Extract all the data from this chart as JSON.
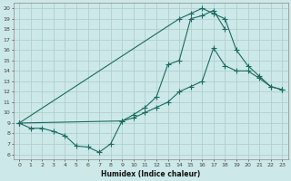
{
  "bg_color": "#cde8e8",
  "grid_color": "#b0d0d0",
  "line_color": "#1a6b60",
  "xlabel": "Humidex (Indice chaleur)",
  "ylim": [
    5.5,
    20.5
  ],
  "xlim": [
    -0.5,
    23.5
  ],
  "yticks": [
    6,
    7,
    8,
    9,
    10,
    11,
    12,
    13,
    14,
    15,
    16,
    17,
    18,
    19,
    20
  ],
  "xticks": [
    0,
    1,
    2,
    3,
    4,
    5,
    6,
    7,
    8,
    9,
    10,
    11,
    12,
    13,
    14,
    15,
    16,
    17,
    18,
    19,
    20,
    21,
    22,
    23
  ],
  "line1_x": [
    0,
    1,
    2,
    3,
    4,
    5,
    6,
    7,
    8,
    9,
    10,
    11,
    12,
    13,
    14,
    15,
    16,
    17,
    18
  ],
  "line1_y": [
    9,
    8.5,
    8.5,
    8.2,
    7.8,
    6.8,
    6.7,
    6.2,
    7.0,
    9.2,
    9.8,
    10.5,
    11.5,
    14.6,
    15.0,
    19.0,
    19.3,
    19.8,
    18.0
  ],
  "line2_x": [
    0,
    9,
    10,
    11,
    12,
    13,
    14,
    15,
    16,
    17,
    18,
    19,
    20,
    21,
    22,
    23
  ],
  "line2_y": [
    9,
    9.2,
    9.5,
    10.0,
    10.5,
    11.0,
    12.0,
    12.5,
    13.0,
    16.2,
    14.5,
    14.0,
    14.0,
    13.3,
    12.5,
    12.2
  ],
  "line3_x": [
    0,
    14,
    15,
    16,
    17,
    18,
    19,
    20,
    21,
    22,
    23
  ],
  "line3_y": [
    9,
    19.0,
    19.5,
    20.0,
    19.5,
    19.0,
    16.0,
    14.5,
    13.5,
    12.5,
    12.2
  ]
}
